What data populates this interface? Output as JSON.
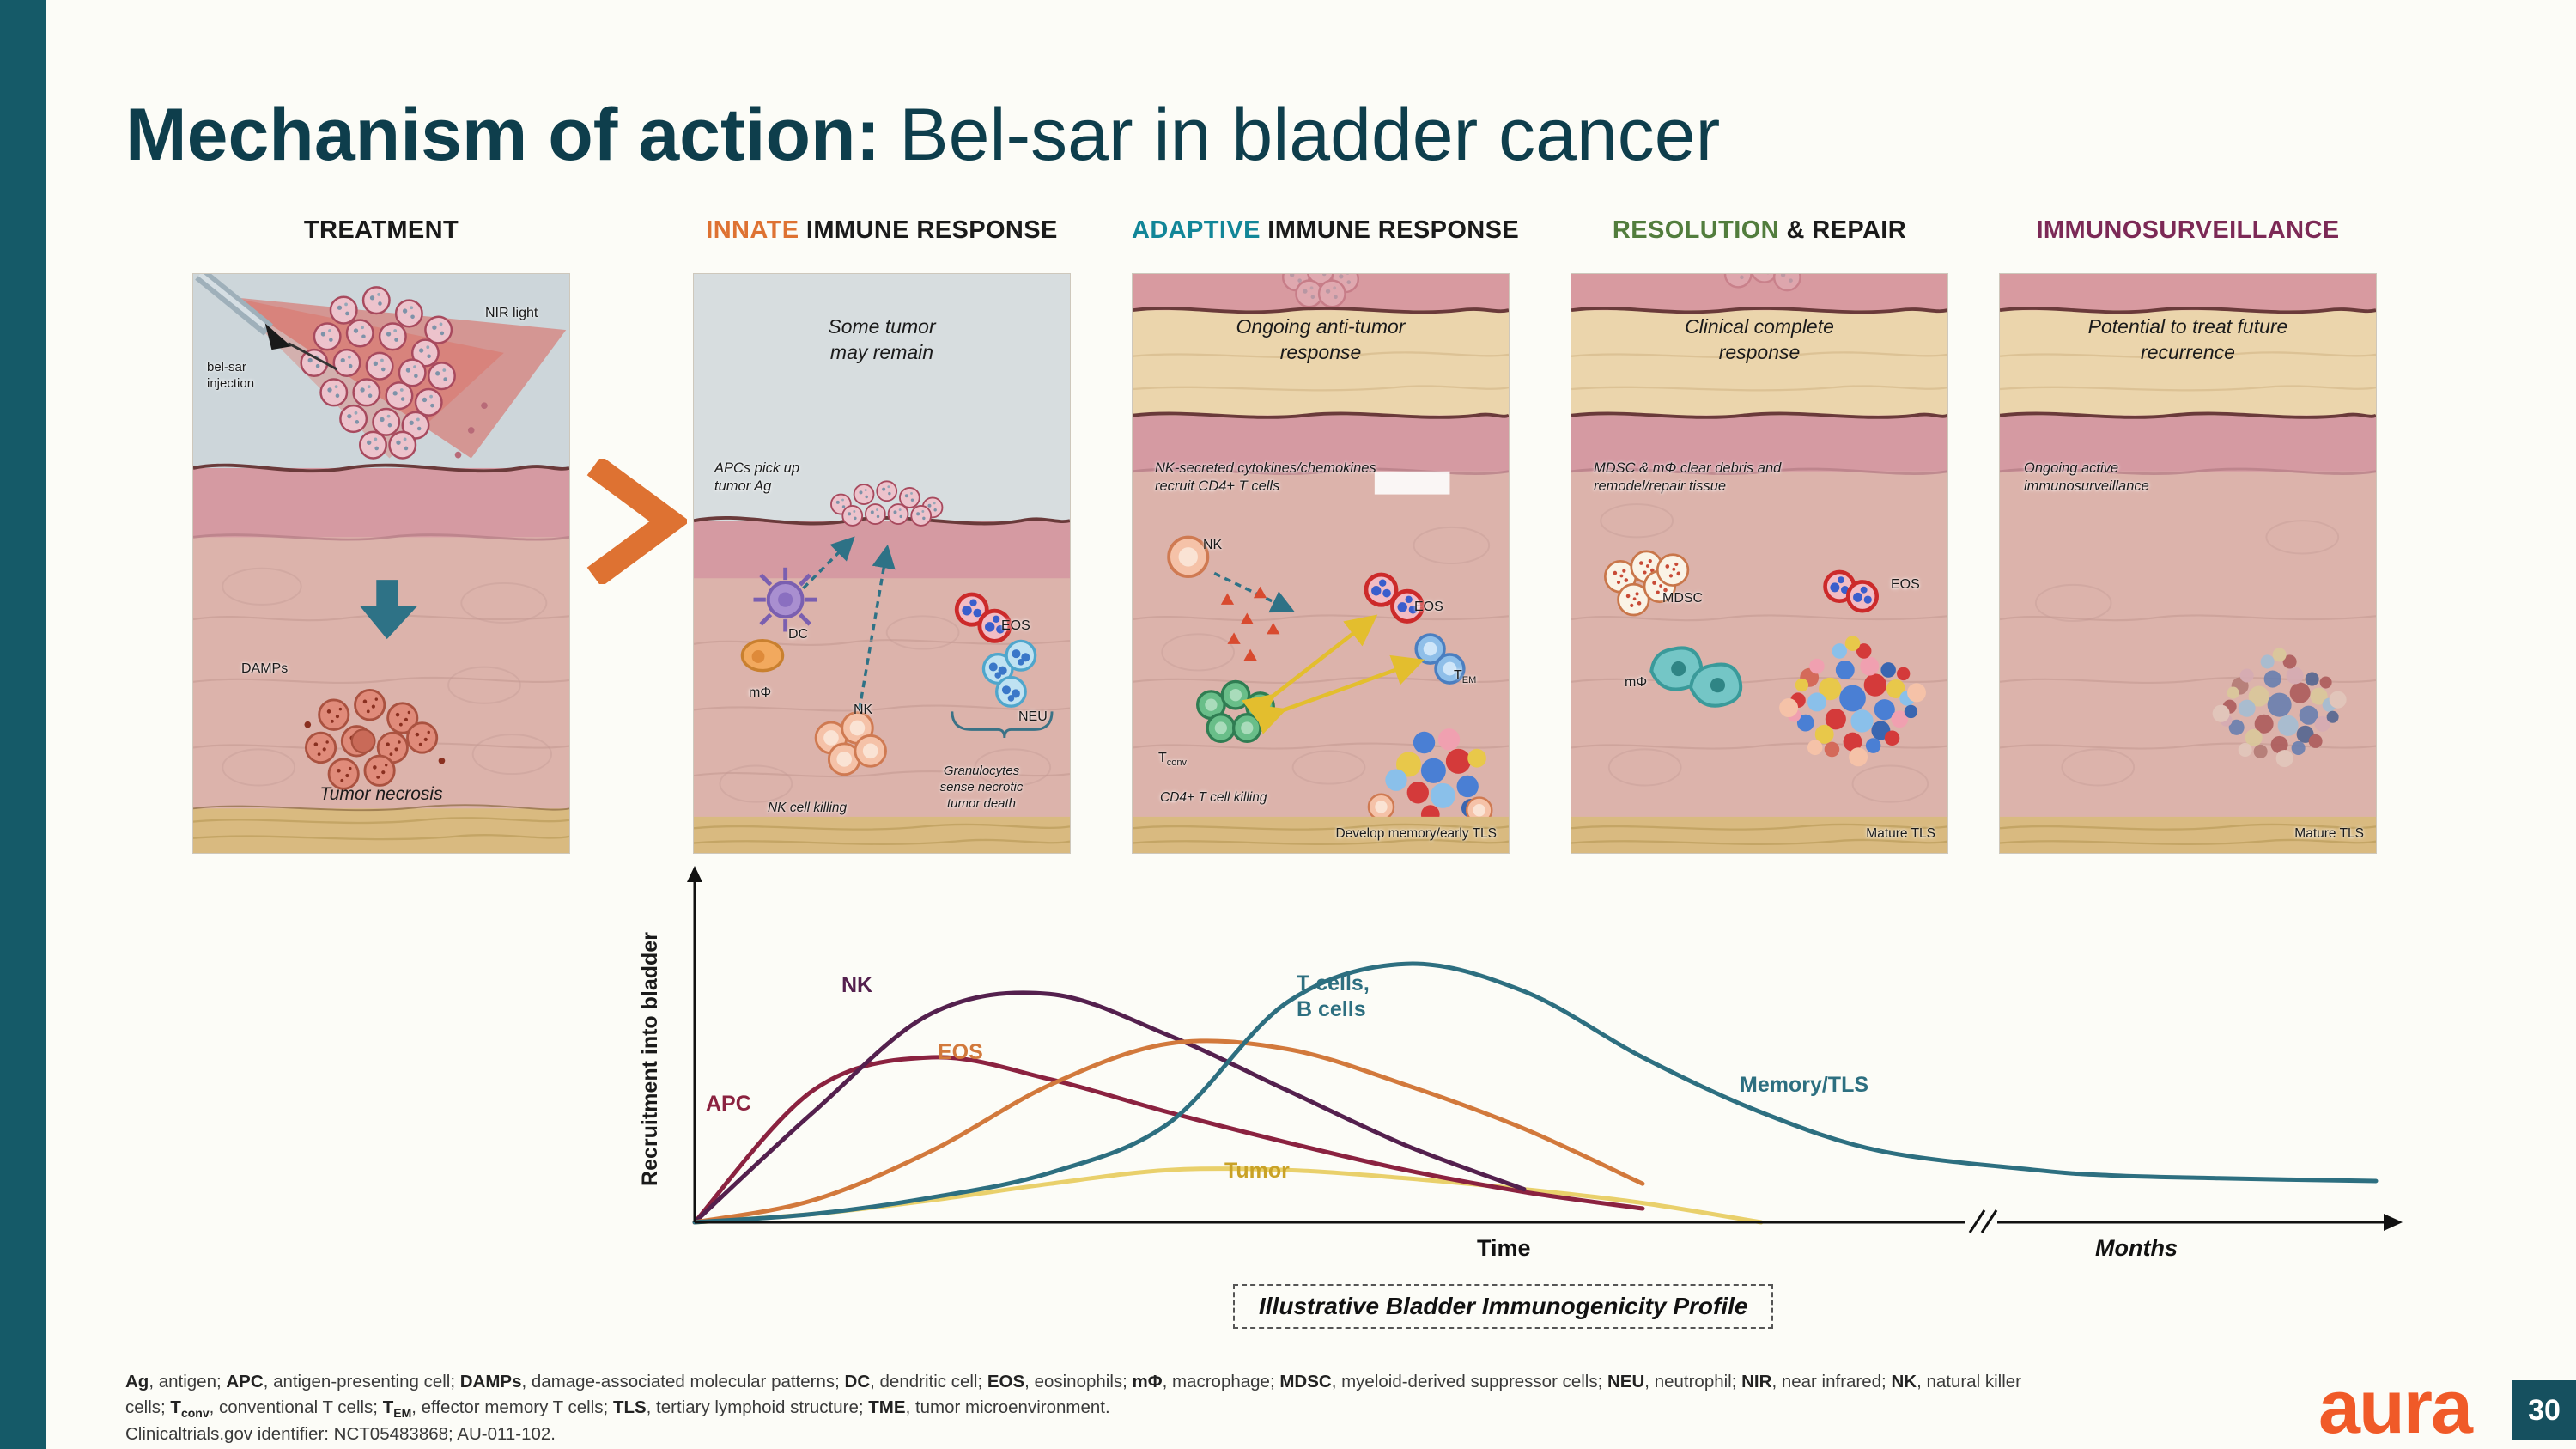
{
  "colors": {
    "title": "#0E3E4C",
    "sidebar_bar": "#155A68",
    "accent_innate": "#DE7232",
    "accent_adaptive": "#128698",
    "accent_resolution": "#527D3D",
    "accent_surveillance": "#7C2956",
    "arrow_orange": "#DE7232",
    "logo_orange": "#F05A28",
    "page_badge_bg": "#16505F",
    "curve_apc": "#8B2240",
    "curve_nk": "#54204E",
    "curve_eos": "#D2793C",
    "curve_tcells": "#2D6F80",
    "curve_tumor": "#E9D06B",
    "tumor_label": "#C9A227"
  },
  "slide": {
    "title_bold": "Mechanism of action:",
    "title_rest": "Bel-sar in bladder cancer",
    "logo_text": "aura",
    "page_number": "30"
  },
  "stages": [
    {
      "header": {
        "accent": "",
        "rest": "TREATMENT",
        "accent_color": ""
      },
      "labels": {
        "nir": "NIR light",
        "inj_l1": "bel-sar",
        "inj_l2": "injection",
        "damps": "DAMPs",
        "caption": "Tumor necrosis"
      }
    },
    {
      "header": {
        "accent": "INNATE",
        "rest": " IMMUNE RESPONSE",
        "accent_color": "#DE7232"
      },
      "labels": {
        "headline_l1": "Some tumor",
        "headline_l2": "may remain",
        "apc_l1": "APCs pick up",
        "apc_l2": "tumor Ag",
        "dc": "DC",
        "mphi": "mΦ",
        "nk": "NK",
        "eos": "EOS",
        "neu": "NEU",
        "nk_killing": "NK cell killing",
        "gran_l1": "Granulocytes",
        "gran_l2": "sense necrotic",
        "gran_l3": "tumor death"
      }
    },
    {
      "header": {
        "accent": "ADAPTIVE",
        "rest": " IMMUNE RESPONSE",
        "accent_color": "#128698"
      },
      "labels": {
        "headline_l1": "Ongoing anti-tumor",
        "headline_l2": "response",
        "cyto_l1": "NK-secreted cytokines/chemokines",
        "cyto_l2": "recruit CD4+ T cells",
        "nk": "NK",
        "eos": "EOS",
        "tem_base": "T",
        "tem_sub": "EM",
        "tconv_base": "T",
        "tconv_sub": "conv",
        "cd4": "CD4+ T cell killing",
        "tls": "Develop memory/early TLS"
      }
    },
    {
      "header": {
        "accent": "RESOLUTION",
        "rest": " & REPAIR",
        "accent_color": "#527D3D"
      },
      "labels": {
        "headline_l1": "Clinical complete",
        "headline_l2": "response",
        "clear_l1": "MDSC & mΦ clear debris and",
        "clear_l2": "remodel/repair tissue",
        "mdsc": "MDSC",
        "eos": "EOS",
        "mphi": "mΦ",
        "tls": "Mature TLS"
      }
    },
    {
      "header": {
        "accent": "IMMUNOSURVEILLANCE",
        "rest": "",
        "accent_color": "#7C2956"
      },
      "labels": {
        "headline_l1": "Potential to treat future",
        "headline_l2": "recurrence",
        "surv_l1": "Ongoing active",
        "surv_l2": "immunosurveillance",
        "tls": "Mature TLS"
      }
    }
  ],
  "chart": {
    "ylabel": "Recruitment into bladder",
    "x_label_time": "Time",
    "x_label_months": "Months",
    "caption": "Illustrative Bladder Immunogenicity Profile",
    "labels": {
      "apc": "APC",
      "nk": "NK",
      "eos": "EOS",
      "tb_l1": "T cells,",
      "tb_l2": "B cells",
      "tumor": "Tumor",
      "memory": "Memory/TLS"
    }
  },
  "chart_data": {
    "type": "line",
    "title": "Illustrative Bladder Immunogenicity Profile",
    "xlabel": "Time",
    "x_axis_segments": [
      "Time",
      "Months"
    ],
    "x_axis_break_after": 10,
    "ylabel": "Recruitment into bladder",
    "grid": false,
    "y_units": "relative (0-100, illustrative; no ticks shown)",
    "series": [
      {
        "name": "Tumor",
        "color": "#E9D06B",
        "x": [
          0,
          1,
          2,
          3,
          4,
          5,
          6,
          7,
          8,
          9
        ],
        "values": [
          0,
          3,
          8,
          14,
          19,
          19,
          16,
          12,
          7,
          0
        ]
      },
      {
        "name": "APC",
        "color": "#8B2240",
        "x": [
          0,
          1,
          2,
          3,
          4,
          5,
          6,
          7,
          8
        ],
        "values": [
          0,
          48,
          60,
          52,
          40,
          29,
          19,
          11,
          5
        ]
      },
      {
        "name": "NK",
        "color": "#54204E",
        "x": [
          0,
          1,
          2,
          3,
          4,
          5,
          6,
          7
        ],
        "values": [
          0,
          40,
          76,
          83,
          68,
          48,
          28,
          12
        ]
      },
      {
        "name": "EOS",
        "color": "#D2793C",
        "x": [
          0,
          1,
          2,
          3,
          4,
          5,
          6,
          7,
          8
        ],
        "values": [
          0,
          8,
          26,
          50,
          65,
          63,
          50,
          34,
          14
        ]
      },
      {
        "name": "T cells, B cells / Memory-TLS",
        "color": "#2D6F80",
        "x": [
          0,
          1,
          2,
          3,
          4,
          5,
          6,
          7,
          8,
          9,
          10,
          11.5,
          13,
          15,
          18
        ],
        "values": [
          0,
          3,
          9,
          18,
          36,
          80,
          94,
          84,
          60,
          40,
          26,
          19,
          17,
          16,
          15
        ]
      }
    ],
    "annotations": [
      "APC",
      "NK",
      "EOS",
      "T cells, B cells",
      "Tumor",
      "Memory/TLS"
    ]
  },
  "footnote": {
    "segments": [
      {
        "t": "Ag",
        "b": 1
      },
      {
        "t": ", antigen; "
      },
      {
        "t": "APC",
        "b": 1
      },
      {
        "t": ", antigen-presenting cell; "
      },
      {
        "t": "DAMPs",
        "b": 1
      },
      {
        "t": ", damage-associated molecular patterns; "
      },
      {
        "t": "DC",
        "b": 1
      },
      {
        "t": ", dendritic cell; "
      },
      {
        "t": "EOS",
        "b": 1
      },
      {
        "t": ", eosinophils; "
      },
      {
        "t": "mΦ",
        "b": 1
      },
      {
        "t": ", macrophage; "
      },
      {
        "t": "MDSC",
        "b": 1
      },
      {
        "t": ", myeloid-derived suppressor cells; "
      },
      {
        "t": "NEU",
        "b": 1
      },
      {
        "t": ", neutrophil; "
      },
      {
        "t": "NIR",
        "b": 1
      },
      {
        "t": ", near infrared; "
      },
      {
        "t": "NK",
        "b": 1
      },
      {
        "t": ", natural killer cells; "
      },
      {
        "t": "T",
        "b": 1
      },
      {
        "t": "conv",
        "b": 1,
        "sub": 1
      },
      {
        "t": ", conventional T cells; "
      },
      {
        "t": "T",
        "b": 1
      },
      {
        "t": "EM",
        "b": 1,
        "sub": 1
      },
      {
        "t": ", effector memory T cells; "
      },
      {
        "t": "TLS",
        "b": 1
      },
      {
        "t": ", tertiary lymphoid structure; "
      },
      {
        "t": "TME",
        "b": 1
      },
      {
        "t": ", tumor microenvironment."
      }
    ],
    "trial_line": "Clinicaltrials.gov identifier: NCT05483868; AU-011-102."
  }
}
